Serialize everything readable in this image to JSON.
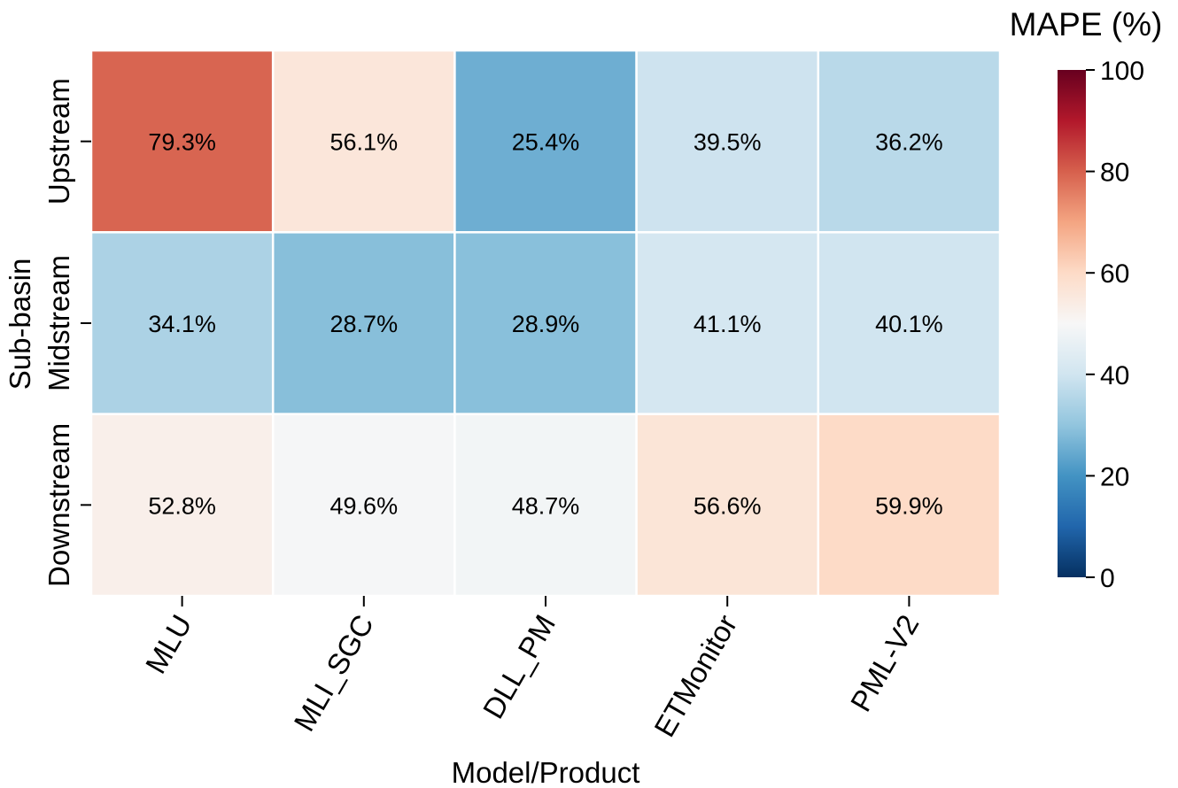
{
  "chart_data": {
    "type": "heatmap",
    "title": "",
    "xlabel": "Model/Product",
    "ylabel": "Sub-basin",
    "x_categories": [
      "MLU",
      "MLI_SGC",
      "DLL_PM",
      "ETMonitor",
      "PML-V2"
    ],
    "y_categories": [
      "Upstream",
      "Midstream",
      "Downstream"
    ],
    "values": [
      [
        79.3,
        56.1,
        25.4,
        39.5,
        36.2
      ],
      [
        34.1,
        28.7,
        28.9,
        41.1,
        40.1
      ],
      [
        52.8,
        49.6,
        48.7,
        56.6,
        59.9
      ]
    ],
    "cell_labels": [
      [
        "79.3%",
        "56.1%",
        "25.4%",
        "39.5%",
        "36.2%"
      ],
      [
        "34.1%",
        "28.7%",
        "28.9%",
        "41.1%",
        "40.1%"
      ],
      [
        "52.8%",
        "49.6%",
        "48.7%",
        "56.6%",
        "59.9%"
      ]
    ],
    "colorbar": {
      "label": "MAPE (%)",
      "range": [
        0,
        100
      ],
      "ticks": [
        0,
        20,
        40,
        60,
        80,
        100
      ],
      "tick_labels": [
        "0",
        "20",
        "40",
        "60",
        "80",
        "100"
      ],
      "colormap": "RdBu_r",
      "colors": [
        "#053061",
        "#2166ac",
        "#4393c3",
        "#92c5de",
        "#d1e5f0",
        "#f7f7f7",
        "#fddbc7",
        "#f4a582",
        "#d6604d",
        "#b2182b",
        "#67001f"
      ]
    }
  }
}
